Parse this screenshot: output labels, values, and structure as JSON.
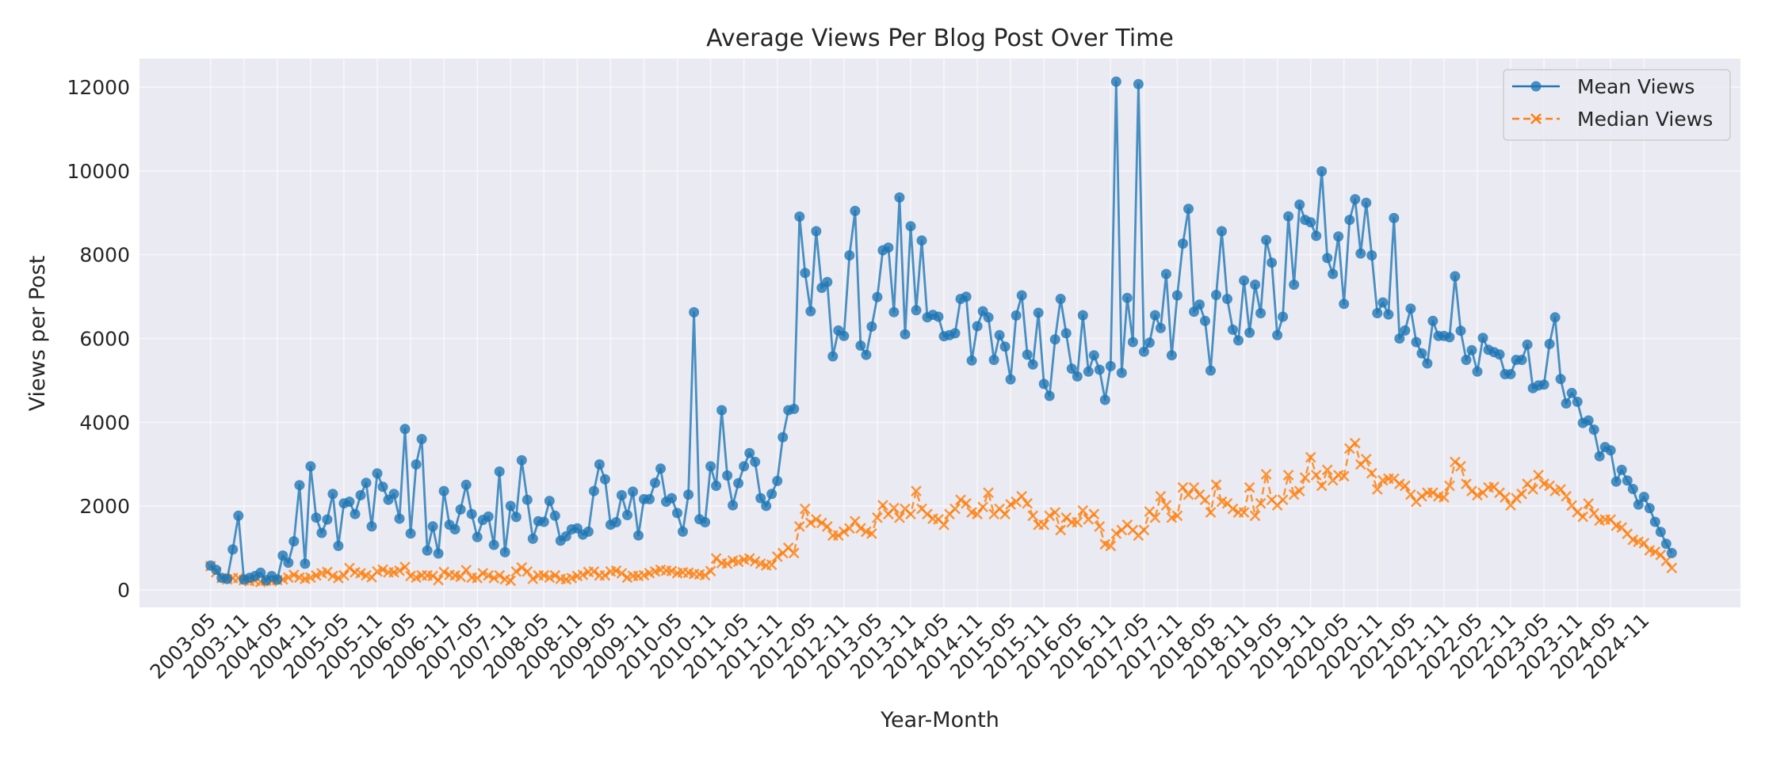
{
  "chart_data": {
    "type": "line",
    "title": "Average Views Per Blog Post Over Time",
    "xlabel": "Year-Month",
    "ylabel": "Views per Post",
    "ylim": [
      0,
      12500
    ],
    "yticks": [
      0,
      2000,
      4000,
      6000,
      8000,
      10000,
      12000
    ],
    "grid": true,
    "legend_position": "top-right",
    "background": "#eaeaf2",
    "xticks": [
      "2003-05",
      "2003-11",
      "2004-05",
      "2004-11",
      "2005-05",
      "2005-11",
      "2006-05",
      "2006-11",
      "2007-05",
      "2007-11",
      "2008-05",
      "2008-11",
      "2009-05",
      "2009-11",
      "2010-05",
      "2010-11",
      "2011-05",
      "2011-11",
      "2012-05",
      "2012-11",
      "2013-05",
      "2013-11",
      "2014-05",
      "2014-11",
      "2015-05",
      "2015-11",
      "2016-05",
      "2016-11",
      "2017-05",
      "2017-11",
      "2018-05",
      "2018-11",
      "2019-05",
      "2019-11",
      "2020-05",
      "2020-11",
      "2021-05",
      "2021-11",
      "2022-05",
      "2022-11",
      "2023-05",
      "2023-11",
      "2024-05",
      "2024-11"
    ],
    "x": [
      "2003-05",
      "2003-06",
      "2003-07",
      "2003-08",
      "2003-09",
      "2003-10",
      "2003-11",
      "2003-12",
      "2004-01",
      "2004-02",
      "2004-03",
      "2004-04",
      "2004-05",
      "2004-06",
      "2004-07",
      "2004-08",
      "2004-09",
      "2004-10",
      "2004-11",
      "2004-12",
      "2005-01",
      "2005-02",
      "2005-03",
      "2005-04",
      "2005-05",
      "2005-06",
      "2005-07",
      "2005-08",
      "2005-09",
      "2005-10",
      "2005-11",
      "2005-12",
      "2006-01",
      "2006-02",
      "2006-03",
      "2006-04",
      "2006-05",
      "2006-06",
      "2006-07",
      "2006-08",
      "2006-09",
      "2006-10",
      "2006-11",
      "2006-12",
      "2007-01",
      "2007-02",
      "2007-03",
      "2007-04",
      "2007-05",
      "2007-06",
      "2007-07",
      "2007-08",
      "2007-09",
      "2007-10",
      "2007-11",
      "2007-12",
      "2008-01",
      "2008-02",
      "2008-03",
      "2008-04",
      "2008-05",
      "2008-06",
      "2008-07",
      "2008-08",
      "2008-09",
      "2008-10",
      "2008-11",
      "2008-12",
      "2009-01",
      "2009-02",
      "2009-03",
      "2009-04",
      "2009-05",
      "2009-06",
      "2009-07",
      "2009-08",
      "2009-09",
      "2009-10",
      "2009-11",
      "2009-12",
      "2010-01",
      "2010-02",
      "2010-03",
      "2010-04",
      "2010-05",
      "2010-06",
      "2010-07",
      "2010-08",
      "2010-09",
      "2010-10",
      "2010-11",
      "2010-12",
      "2011-01",
      "2011-02",
      "2011-03",
      "2011-04",
      "2011-05",
      "2011-06",
      "2011-07",
      "2011-08",
      "2011-09",
      "2011-10",
      "2011-11",
      "2011-12",
      "2012-01",
      "2012-02",
      "2012-03",
      "2012-04",
      "2012-05",
      "2012-06",
      "2012-07",
      "2012-08",
      "2012-09",
      "2012-10",
      "2012-11",
      "2012-12",
      "2013-01",
      "2013-02",
      "2013-03",
      "2013-04",
      "2013-05",
      "2013-06",
      "2013-07",
      "2013-08",
      "2013-09",
      "2013-10",
      "2013-11",
      "2013-12",
      "2014-01",
      "2014-02",
      "2014-03",
      "2014-04",
      "2014-05",
      "2014-06",
      "2014-07",
      "2014-08",
      "2014-09",
      "2014-10",
      "2014-11",
      "2014-12",
      "2015-01",
      "2015-02",
      "2015-03",
      "2015-04",
      "2015-05",
      "2015-06",
      "2015-07",
      "2015-08",
      "2015-09",
      "2015-10",
      "2015-11",
      "2015-12",
      "2016-01",
      "2016-02",
      "2016-03",
      "2016-04",
      "2016-05",
      "2016-06",
      "2016-07",
      "2016-08",
      "2016-09",
      "2016-10",
      "2016-11",
      "2016-12",
      "2017-01",
      "2017-02",
      "2017-03",
      "2017-04",
      "2017-05",
      "2017-06",
      "2017-07",
      "2017-08",
      "2017-09",
      "2017-10",
      "2017-11",
      "2017-12",
      "2018-01",
      "2018-02",
      "2018-03",
      "2018-04",
      "2018-05",
      "2018-06",
      "2018-07",
      "2018-08",
      "2018-09",
      "2018-10",
      "2018-11",
      "2018-12",
      "2019-01",
      "2019-02",
      "2019-03",
      "2019-04",
      "2019-05",
      "2019-06",
      "2019-07",
      "2019-08",
      "2019-09",
      "2019-10",
      "2019-11",
      "2019-12",
      "2020-01",
      "2020-02",
      "2020-03",
      "2020-04",
      "2020-05",
      "2020-06",
      "2020-07",
      "2020-08",
      "2020-09",
      "2020-10",
      "2020-11",
      "2020-12",
      "2021-01",
      "2021-02",
      "2021-03",
      "2021-04",
      "2021-05",
      "2021-06",
      "2021-07",
      "2021-08",
      "2021-09",
      "2021-10",
      "2021-11",
      "2021-12",
      "2022-01",
      "2022-02",
      "2022-03",
      "2022-04",
      "2022-05",
      "2022-06",
      "2022-07",
      "2022-08",
      "2022-09",
      "2022-10",
      "2022-11",
      "2022-12",
      "2023-01",
      "2023-02",
      "2023-03",
      "2023-04",
      "2023-05",
      "2023-06",
      "2023-07",
      "2023-08",
      "2023-09",
      "2023-10",
      "2023-11",
      "2023-12",
      "2024-01",
      "2024-02",
      "2024-03",
      "2024-04",
      "2024-05",
      "2024-06",
      "2024-07",
      "2024-08",
      "2024-09",
      "2024-10",
      "2024-11",
      "2024-12",
      "2025-01",
      "2025-02",
      "2025-03",
      "2025-04"
    ],
    "series": [
      {
        "name": "Mean Views",
        "color": "#1f77b4",
        "marker": "circle",
        "linestyle": "solid",
        "values": [
          580,
          480,
          290,
          260,
          965,
          1770,
          245,
          290,
          330,
          410,
          230,
          330,
          245,
          820,
          650,
          1160,
          2500,
          625,
          2950,
          1725,
          1360,
          1680,
          2290,
          1050,
          2065,
          2105,
          1810,
          2260,
          2555,
          1515,
          2780,
          2460,
          2150,
          2290,
          1700,
          3840,
          1345,
          2995,
          3600,
          940,
          1515,
          870,
          2360,
          1555,
          1445,
          1920,
          2510,
          1810,
          1260,
          1670,
          1750,
          1075,
          2825,
          900,
          2005,
          1740,
          3095,
          2150,
          1220,
          1640,
          1625,
          2125,
          1770,
          1175,
          1280,
          1445,
          1470,
          1320,
          1390,
          2360,
          2995,
          2640,
          1555,
          1615,
          2260,
          1785,
          2345,
          1300,
          2165,
          2165,
          2555,
          2895,
          2105,
          2190,
          1835,
          1390,
          2275,
          6625,
          1685,
          1615,
          2950,
          2485,
          4290,
          2730,
          2020,
          2545,
          2950,
          3265,
          3055,
          2190,
          2005,
          2290,
          2600,
          3645,
          4290,
          4320,
          8910,
          7565,
          6650,
          8560,
          7210,
          7350,
          5575,
          6190,
          6060,
          7985,
          9045,
          5830,
          5610,
          6285,
          6990,
          8105,
          8170,
          6630,
          9365,
          6100,
          8680,
          6675,
          8340,
          6505,
          6565,
          6520,
          6055,
          6080,
          6125,
          6945,
          6995,
          5475,
          6295,
          6650,
          6505,
          5490,
          6080,
          5805,
          5025,
          6550,
          7030,
          5615,
          5380,
          6615,
          4915,
          4630,
          5980,
          6945,
          6125,
          5280,
          5095,
          6555,
          5210,
          5600,
          5255,
          4535,
          5340,
          12130,
          5180,
          6970,
          5915,
          12070,
          5685,
          5900,
          6555,
          6250,
          7540,
          5600,
          7030,
          8265,
          9095,
          6640,
          6810,
          6420,
          5235,
          7040,
          8560,
          6945,
          6210,
          5955,
          7385,
          6140,
          7285,
          6605,
          8350,
          7810,
          6080,
          6520,
          8915,
          7285,
          9195,
          8830,
          8775,
          8450,
          9990,
          7920,
          7540,
          8435,
          6825,
          8830,
          9325,
          8030,
          9240,
          7985,
          6605,
          6860,
          6575,
          8875,
          6000,
          6190,
          6715,
          5915,
          5645,
          5405,
          6420,
          6060,
          6060,
          6030,
          7485,
          6185,
          5490,
          5720,
          5210,
          6015,
          5730,
          5675,
          5620,
          5150,
          5150,
          5490,
          5490,
          5855,
          4815,
          4880,
          4900,
          5870,
          6505,
          5035,
          4450,
          4700,
          4490,
          3985,
          4045,
          3825,
          3190,
          3410,
          3330,
          2585,
          2865,
          2610,
          2410,
          2035,
          2220,
          1950,
          1625,
          1385,
          1100,
          880
        ]
      },
      {
        "name": "Median Views",
        "color": "#ff7f0e",
        "marker": "x",
        "linestyle": "dashed",
        "values": [
          566,
          421,
          283,
          252,
          283,
          283,
          233,
          208,
          220,
          189,
          220,
          208,
          233,
          252,
          296,
          359,
          296,
          264,
          296,
          346,
          396,
          428,
          333,
          283,
          346,
          523,
          421,
          396,
          346,
          302,
          440,
          484,
          421,
          421,
          459,
          548,
          333,
          296,
          346,
          346,
          333,
          233,
          428,
          359,
          346,
          315,
          472,
          296,
          283,
          396,
          346,
          283,
          346,
          252,
          220,
          440,
          535,
          440,
          264,
          346,
          346,
          296,
          346,
          264,
          252,
          283,
          333,
          359,
          428,
          440,
          346,
          346,
          440,
          459,
          396,
          296,
          333,
          333,
          350,
          400,
          440,
          480,
          460,
          450,
          400,
          420,
          410,
          380,
          370,
          350,
          450,
          750,
          640,
          625,
          700,
          670,
          720,
          750,
          680,
          625,
          585,
          600,
          795,
          880,
          1005,
          880,
          1515,
          1935,
          1600,
          1685,
          1600,
          1515,
          1300,
          1300,
          1390,
          1470,
          1640,
          1470,
          1390,
          1345,
          1725,
          2020,
          1810,
          1955,
          1725,
          1935,
          1810,
          2360,
          1935,
          1810,
          1700,
          1685,
          1555,
          1810,
          1935,
          2150,
          2065,
          1850,
          1810,
          1980,
          2320,
          1810,
          1935,
          1810,
          2040,
          2105,
          2235,
          2065,
          1770,
          1555,
          1555,
          1770,
          1850,
          1430,
          1725,
          1615,
          1615,
          1895,
          1685,
          1810,
          1515,
          1090,
          1050,
          1345,
          1430,
          1555,
          1430,
          1300,
          1430,
          1870,
          1725,
          2235,
          2020,
          1725,
          1770,
          2445,
          2275,
          2445,
          2275,
          2150,
          1850,
          2510,
          2105,
          2065,
          1935,
          1850,
          1850,
          2445,
          1770,
          2065,
          2760,
          2150,
          2020,
          2150,
          2740,
          2275,
          2360,
          2680,
          3165,
          2740,
          2485,
          2865,
          2615,
          2740,
          2715,
          3375,
          3500,
          2995,
          3120,
          2785,
          2400,
          2615,
          2655,
          2655,
          2530,
          2485,
          2275,
          2105,
          2235,
          2320,
          2320,
          2235,
          2210,
          2485,
          3055,
          2950,
          2530,
          2360,
          2260,
          2320,
          2445,
          2460,
          2320,
          2210,
          2020,
          2190,
          2290,
          2530,
          2400,
          2740,
          2530,
          2485,
          2360,
          2400,
          2235,
          2015,
          1855,
          1745,
          2060,
          1825,
          1655,
          1680,
          1680,
          1530,
          1490,
          1340,
          1195,
          1150,
          1115,
          945,
          910,
          835,
          690,
          525
        ]
      }
    ]
  }
}
